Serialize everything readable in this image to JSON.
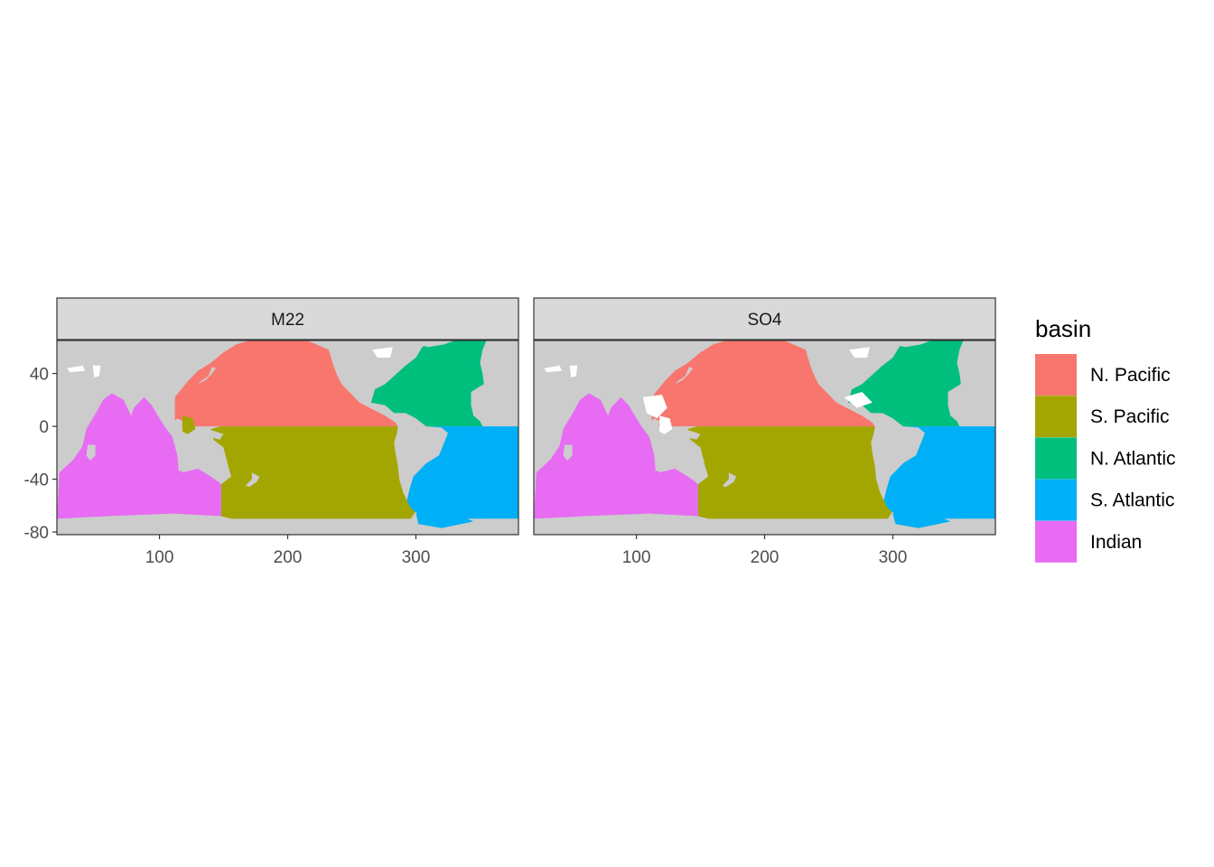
{
  "chart_data": {
    "type": "map",
    "facets": [
      {
        "label": "M22"
      },
      {
        "label": "SO4"
      }
    ],
    "xaxis": {
      "range": [
        20,
        380
      ],
      "ticks": [
        100,
        200,
        300
      ],
      "tick_labels": [
        "100",
        "200",
        "300"
      ]
    },
    "yaxis": {
      "range": [
        -82,
        65
      ],
      "ticks": [
        40,
        0,
        -40,
        -80
      ],
      "tick_labels": [
        "40",
        "0",
        "-40",
        "-80"
      ]
    },
    "land_color": "#cccccc",
    "legend": {
      "title": "basin",
      "position": "right",
      "items": [
        {
          "label": "N. Pacific",
          "color": "#F8766D"
        },
        {
          "label": "S. Pacific",
          "color": "#A3A500"
        },
        {
          "label": "N. Atlantic",
          "color": "#00BF7D"
        },
        {
          "label": "S. Atlantic",
          "color": "#00B0F6"
        },
        {
          "label": "Indian",
          "color": "#E76BF3"
        }
      ]
    }
  }
}
